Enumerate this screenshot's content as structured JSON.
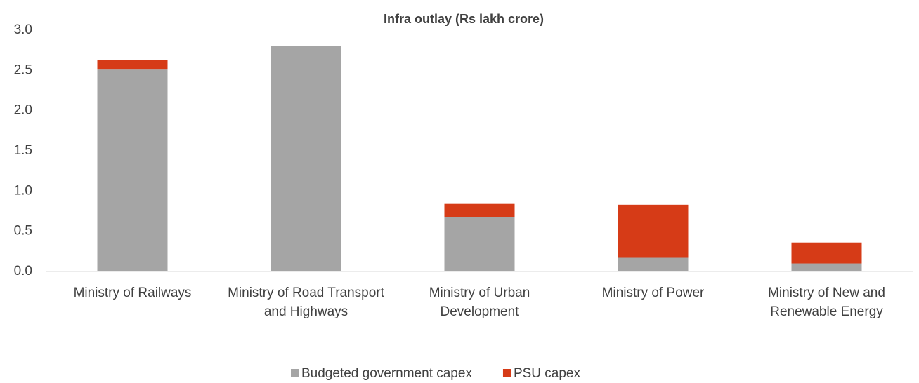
{
  "chart_data": {
    "type": "stacked_bar",
    "title": "Infra outlay (Rs lakh crore)",
    "categories": [
      "Ministry of Railways",
      "Ministry of Road Transport and Highways",
      "Ministry of Urban Development",
      "Ministry of Power",
      "Ministry of New and Renewable Energy"
    ],
    "series": [
      {
        "name": "Budgeted government capex",
        "color": "#a5a5a5",
        "values": [
          2.51,
          2.8,
          0.68,
          0.17,
          0.1
        ]
      },
      {
        "name": "PSU capex",
        "color": "#d63b17",
        "values": [
          0.12,
          0,
          0.16,
          0.66,
          0.26
        ]
      }
    ],
    "ylim": [
      0,
      3
    ],
    "yticks": [
      {
        "value": 0,
        "label": "0.0"
      },
      {
        "value": 0.5,
        "label": "0.5"
      },
      {
        "value": 1,
        "label": "1.0"
      },
      {
        "value": 1.5,
        "label": "1.5"
      },
      {
        "value": 2,
        "label": "2.0"
      },
      {
        "value": 2.5,
        "label": "2.5"
      },
      {
        "value": 3,
        "label": "3.0"
      }
    ],
    "grid": false,
    "legend": "bottom"
  }
}
